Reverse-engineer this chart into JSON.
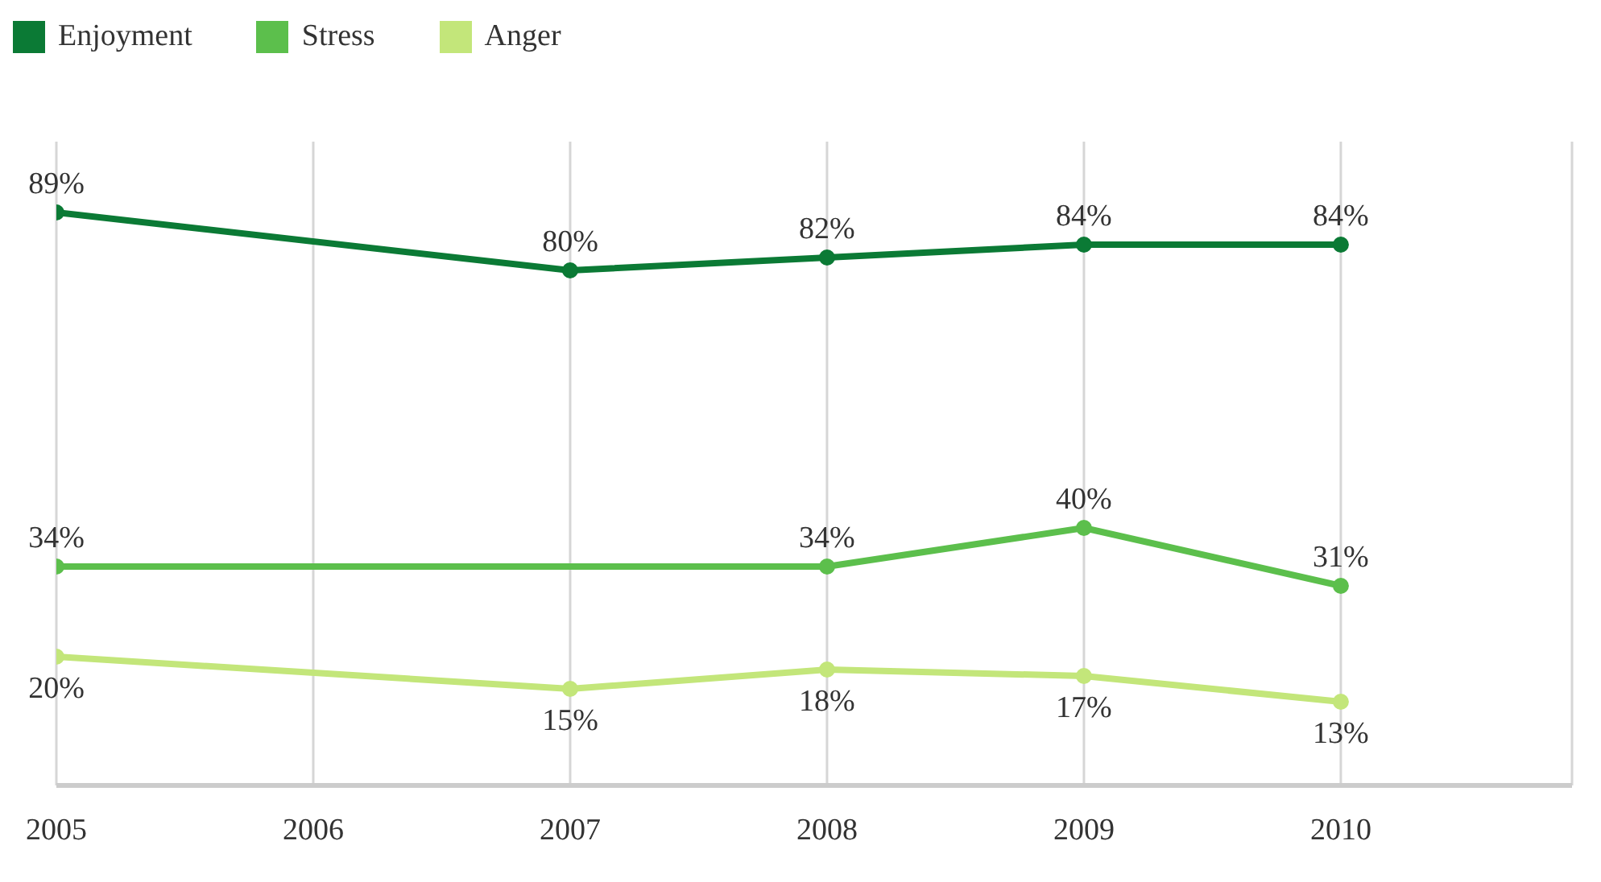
{
  "chart_data": {
    "type": "line",
    "x": [
      2005,
      2006,
      2007,
      2008,
      2009,
      2010
    ],
    "xlim": [
      2005,
      2010.9
    ],
    "xticks": [
      2005,
      2006,
      2007,
      2008,
      2009,
      2010
    ],
    "tick_labels": "x",
    "grid": "x",
    "legend": "top left",
    "marker": "circle",
    "line_style": "solid",
    "series": [
      {
        "name": "Enjoyment",
        "color": "#0b7a35",
        "values": [
          89,
          null,
          80,
          82,
          84,
          84
        ],
        "value_labels": [
          "89%",
          null,
          "80%",
          "82%",
          "84%",
          "84%"
        ]
      },
      {
        "name": "Stress",
        "color": "#5cbf4c",
        "values": [
          34,
          null,
          null,
          34,
          40,
          31
        ],
        "value_labels": [
          "34%",
          null,
          null,
          "34%",
          "40%",
          "31%"
        ]
      },
      {
        "name": "Anger",
        "color": "#c3e67a",
        "values": [
          20,
          null,
          15,
          18,
          17,
          13
        ],
        "value_labels": [
          "20%",
          null,
          "15%",
          "18%",
          "17%",
          "13%"
        ]
      }
    ]
  }
}
